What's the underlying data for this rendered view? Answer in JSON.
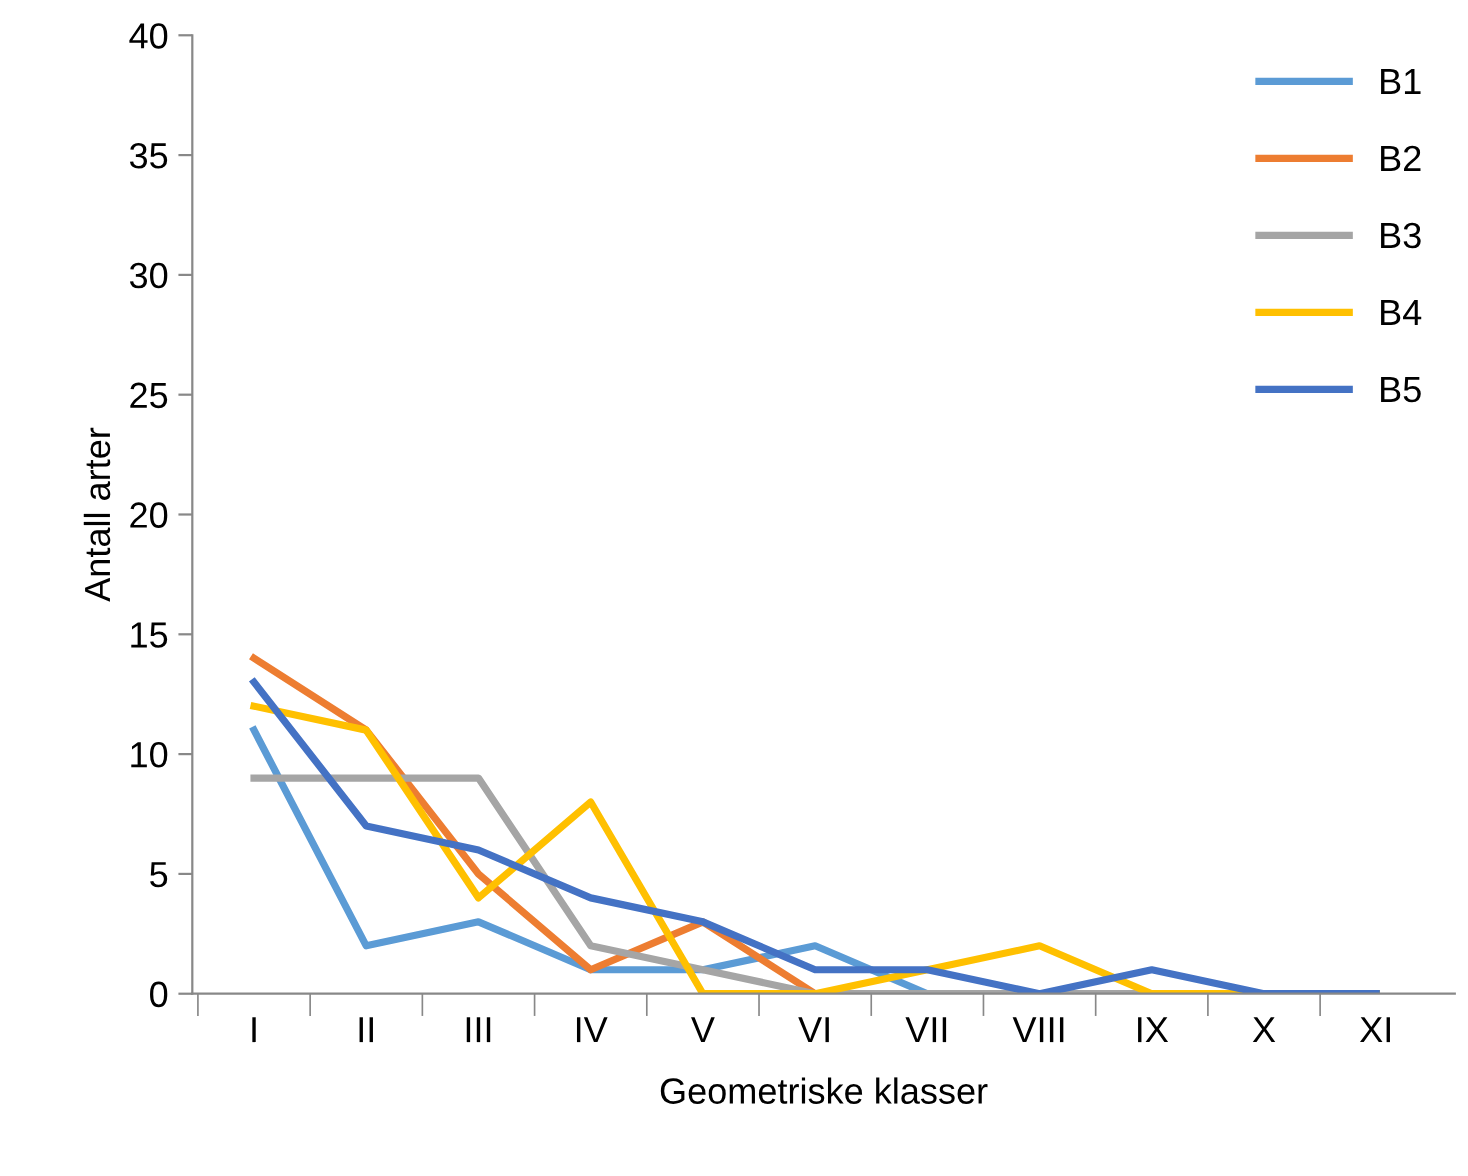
{
  "chart_data": {
    "type": "line",
    "xlabel": "Geometriske klasser",
    "ylabel": "Antall arter",
    "categories": [
      "I",
      "II",
      "III",
      "IV",
      "V",
      "VI",
      "VII",
      "VIII",
      "IX",
      "X",
      "XI"
    ],
    "series": [
      {
        "name": "B1",
        "color": "#5b9bd5",
        "values": [
          11,
          2,
          3,
          1,
          1,
          2,
          0,
          0,
          0,
          0,
          0
        ]
      },
      {
        "name": "B2",
        "color": "#ed7d31",
        "values": [
          14,
          11,
          5,
          1,
          3,
          0,
          0,
          null,
          null,
          null,
          null
        ]
      },
      {
        "name": "B3",
        "color": "#a5a5a5",
        "values": [
          9,
          9,
          9,
          2,
          1,
          0,
          0,
          0,
          0,
          0,
          0
        ]
      },
      {
        "name": "B4",
        "color": "#ffc000",
        "values": [
          12,
          11,
          4,
          8,
          0,
          0,
          1,
          2,
          0,
          0,
          0
        ]
      },
      {
        "name": "B5",
        "color": "#4472c4",
        "values": [
          13,
          7,
          6,
          4,
          3,
          1,
          1,
          0,
          1,
          0,
          0
        ]
      }
    ],
    "ylim": [
      0,
      40
    ],
    "yticks": [
      0,
      5,
      10,
      15,
      20,
      25,
      30,
      35,
      40
    ],
    "grid": false,
    "legend": "top right",
    "marker": "none",
    "line_style": "solid"
  }
}
